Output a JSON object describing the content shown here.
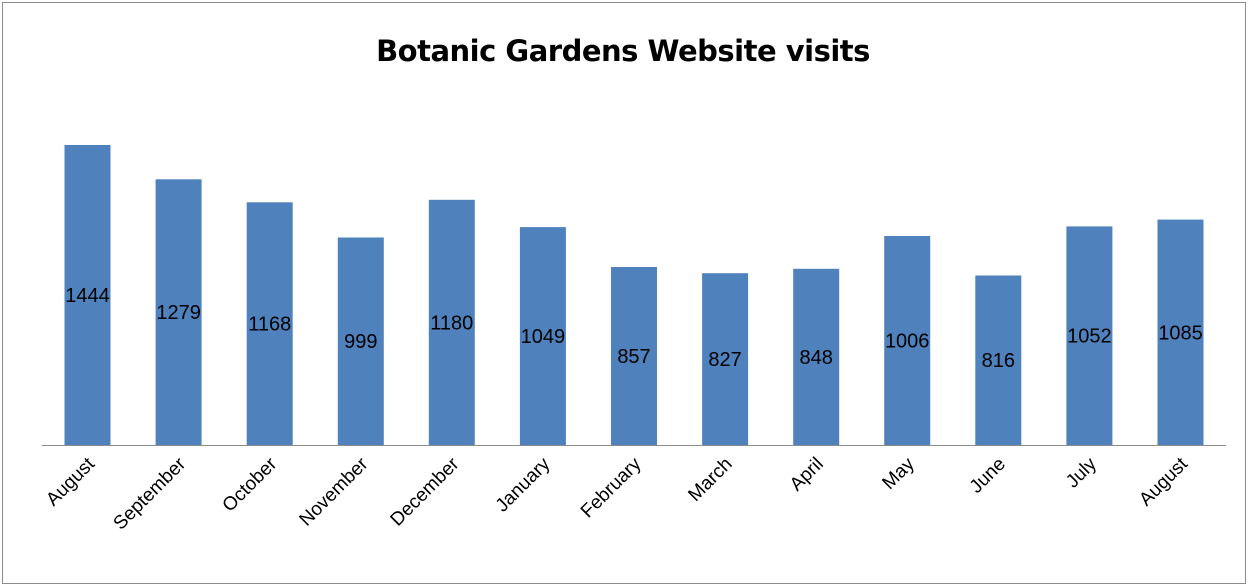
{
  "chart_data": {
    "type": "bar",
    "title": "Botanic Gardens Website visits",
    "xlabel": "",
    "ylabel": "",
    "categories": [
      "August",
      "September",
      "October",
      "November",
      "December",
      "January",
      "February",
      "March",
      "April",
      "May",
      "June",
      "July",
      "August"
    ],
    "values": [
      1444,
      1279,
      1168,
      999,
      1180,
      1049,
      857,
      827,
      848,
      1006,
      816,
      1052,
      1085
    ],
    "ylim": [
      0,
      1500
    ],
    "data_labels": true,
    "grid": false,
    "legend": "none",
    "colors": {
      "bar": "#4f81bd",
      "axis": "#8c8c8c",
      "frame": "#8c8c8c"
    }
  }
}
